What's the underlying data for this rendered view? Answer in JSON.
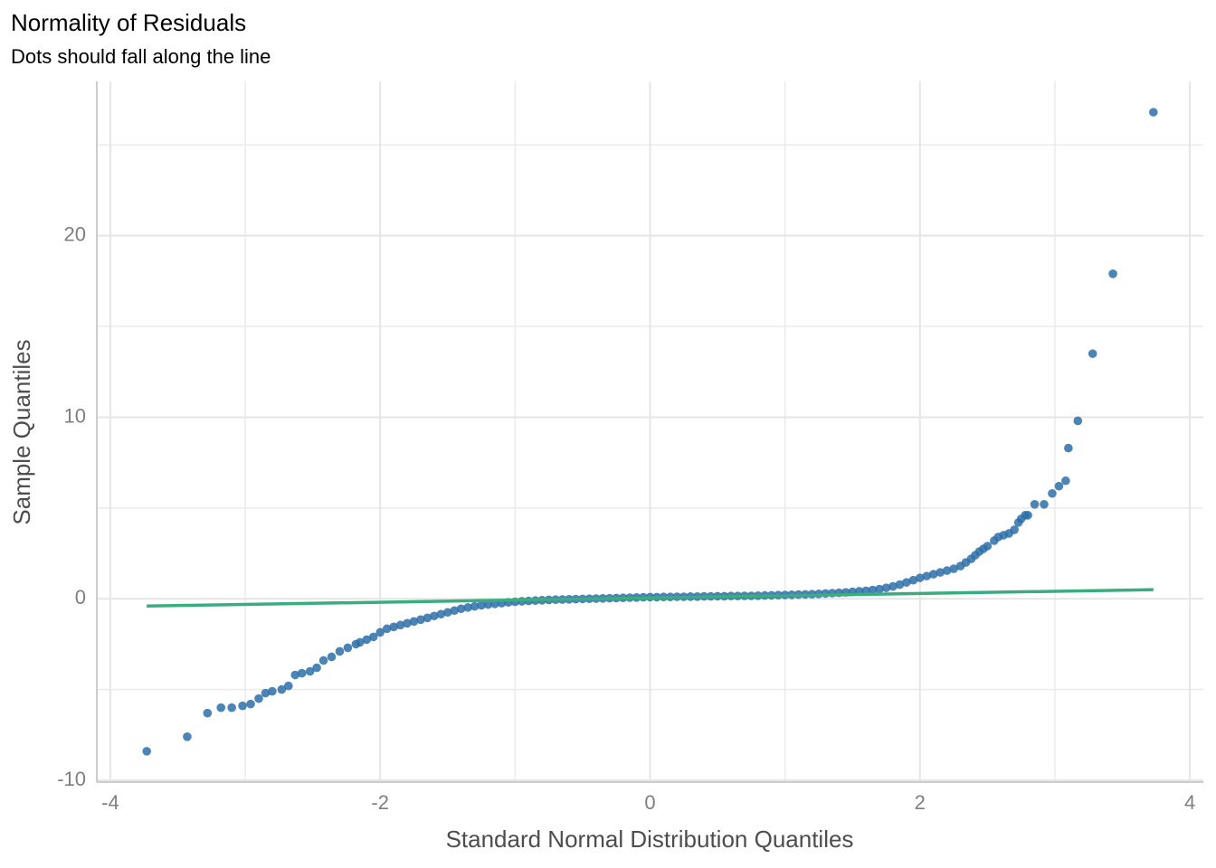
{
  "chart_data": {
    "type": "scatter",
    "title": "Normality of Residuals",
    "subtitle": "Dots should fall along the line",
    "x_label": "Standard Normal Distribution Quantiles",
    "y_label": "Sample Quantiles",
    "xlim": [
      -4.1,
      4.1
    ],
    "ylim": [
      -10.1,
      28.5
    ],
    "xticks": [
      -4,
      -2,
      0,
      2,
      4
    ],
    "yticks": [
      -10,
      0,
      10,
      20
    ],
    "x_minor_ticks": [
      -3,
      -1,
      1,
      3
    ],
    "y_minor_ticks": [
      -5,
      5,
      15,
      25
    ],
    "grid": true,
    "points": {
      "color": "#2d6ea8",
      "x": [
        -3.73,
        -3.43,
        -3.28,
        -3.18,
        -3.1,
        -3.02,
        -2.96,
        -2.9,
        -2.85,
        -2.8,
        -2.73,
        -2.68,
        -2.63,
        -2.58,
        -2.52,
        -2.47,
        -2.42,
        -2.36,
        -2.3,
        -2.24,
        -2.18,
        -2.15,
        -2.1,
        -2.05,
        -2.0,
        -1.95,
        -1.9,
        -1.85,
        -1.8,
        -1.75,
        -1.7,
        -1.65,
        -1.6,
        -1.55,
        -1.5,
        -1.45,
        -1.4,
        -1.35,
        -1.3,
        -1.25,
        -1.2,
        -1.15,
        -1.1,
        -1.05,
        -1.0,
        -0.95,
        -0.9,
        -0.85,
        -0.8,
        -0.75,
        -0.7,
        -0.65,
        -0.6,
        -0.55,
        -0.5,
        -0.45,
        -0.4,
        -0.35,
        -0.3,
        -0.25,
        -0.2,
        -0.15,
        -0.1,
        -0.05,
        0,
        0.05,
        0.1,
        0.15,
        0.2,
        0.25,
        0.3,
        0.35,
        0.4,
        0.45,
        0.5,
        0.55,
        0.6,
        0.65,
        0.7,
        0.75,
        0.8,
        0.85,
        0.9,
        0.95,
        1.0,
        1.05,
        1.1,
        1.15,
        1.2,
        1.25,
        1.3,
        1.35,
        1.4,
        1.45,
        1.5,
        1.55,
        1.6,
        1.65,
        1.7,
        1.75,
        1.8,
        1.85,
        1.9,
        1.95,
        2.0,
        2.05,
        2.1,
        2.15,
        2.2,
        2.25,
        2.3,
        2.34,
        2.38,
        2.41,
        2.44,
        2.47,
        2.5,
        2.55,
        2.58,
        2.62,
        2.66,
        2.7,
        2.73,
        2.75,
        2.78,
        2.8,
        2.85,
        2.92,
        2.98,
        3.03,
        3.08,
        3.1,
        3.17,
        3.28,
        3.43,
        3.73
      ],
      "values": [
        -8.4,
        -7.6,
        -6.3,
        -6.0,
        -6.0,
        -5.9,
        -5.8,
        -5.5,
        -5.2,
        -5.1,
        -5.0,
        -4.8,
        -4.2,
        -4.1,
        -4.0,
        -3.8,
        -3.4,
        -3.2,
        -2.9,
        -2.7,
        -2.5,
        -2.4,
        -2.25,
        -2.1,
        -1.85,
        -1.65,
        -1.55,
        -1.45,
        -1.35,
        -1.25,
        -1.15,
        -1.05,
        -0.95,
        -0.85,
        -0.75,
        -0.65,
        -0.55,
        -0.48,
        -0.42,
        -0.36,
        -0.32,
        -0.28,
        -0.24,
        -0.2,
        -0.17,
        -0.14,
        -0.12,
        -0.1,
        -0.08,
        -0.06,
        -0.05,
        -0.04,
        -0.03,
        -0.02,
        -0.01,
        0.0,
        0.01,
        0.02,
        0.03,
        0.04,
        0.05,
        0.06,
        0.07,
        0.08,
        0.09,
        0.09,
        0.1,
        0.1,
        0.11,
        0.11,
        0.12,
        0.12,
        0.13,
        0.13,
        0.14,
        0.14,
        0.15,
        0.15,
        0.16,
        0.16,
        0.17,
        0.18,
        0.19,
        0.2,
        0.21,
        0.22,
        0.23,
        0.24,
        0.25,
        0.27,
        0.29,
        0.31,
        0.33,
        0.35,
        0.38,
        0.41,
        0.44,
        0.48,
        0.53,
        0.6,
        0.68,
        0.78,
        0.9,
        1.02,
        1.15,
        1.25,
        1.35,
        1.45,
        1.55,
        1.65,
        1.8,
        2.0,
        2.2,
        2.4,
        2.6,
        2.75,
        2.9,
        3.2,
        3.4,
        3.5,
        3.6,
        3.8,
        4.2,
        4.4,
        4.6,
        4.6,
        5.2,
        5.2,
        5.8,
        6.2,
        6.5,
        8.3,
        9.8,
        13.5,
        17.9,
        26.8
      ]
    },
    "reference_line": {
      "color": "#3aad80",
      "x": [
        -3.73,
        3.73
      ],
      "values": [
        -0.4,
        0.5
      ]
    }
  }
}
